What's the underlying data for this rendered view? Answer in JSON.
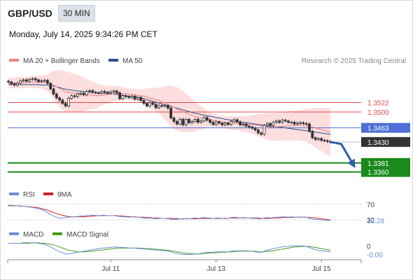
{
  "header": {
    "symbol": "GBP/USD",
    "timeframe": "30 MIN",
    "datetime": "Monday, July 14, 2025 9:34:26 PM CET"
  },
  "colors": {
    "ma20": "#f08080",
    "ma50": "#2e4e8c",
    "band_fill": "#fbd3d3",
    "resistance": "#e04a4a",
    "pivot_line": "#4f6fd6",
    "support": "#1a8a1a",
    "last_box": "#333333",
    "arrow": "#2e5fa8",
    "rsi": "#6b8fd8",
    "rsi_ma": "#cc2222",
    "macd": "#6b8fd8",
    "macd_signal": "#4a9a1a",
    "candle_up": "#ffffff",
    "candle_down": "#333333"
  },
  "main_legend": {
    "ma20_label": "MA 20 + Bollinger Bands",
    "ma50_label": "MA 50",
    "credit": "Research © 2025 Trading Central"
  },
  "rsi_legend": {
    "rsi_label": "RSI",
    "ma_label": "9MA"
  },
  "macd_legend": {
    "macd_label": "MACD",
    "signal_label": "MACD Signal"
  },
  "chart_data": {
    "type": "candlestick",
    "price_ylim": [
      1.3348,
      1.3603
    ],
    "x_labels": [
      {
        "label": "Jul 11",
        "index": 34
      },
      {
        "label": "Jul 13",
        "index": 69
      },
      {
        "label": "Jul 15",
        "index": 104
      }
    ],
    "levels": [
      {
        "label": "1.3522",
        "value": 1.3522,
        "kind": "resistance"
      },
      {
        "label": "1.3500",
        "value": 1.35,
        "kind": "resistance"
      },
      {
        "label": "1.3463",
        "value": 1.3463,
        "kind": "pivot"
      },
      {
        "label": "1.3430",
        "value": 1.343,
        "kind": "last"
      },
      {
        "label": "1.3381",
        "value": 1.3381,
        "kind": "support"
      },
      {
        "label": "1.3360",
        "value": 1.336,
        "kind": "support"
      }
    ],
    "forecast_arrow": {
      "from_index": 107,
      "from_value": 1.343,
      "to_index": 115,
      "to_value": 1.3372
    },
    "close": [
      1.357,
      1.3566,
      1.3563,
      1.3567,
      1.3573,
      1.3575,
      1.3572,
      1.3576,
      1.3578,
      1.3575,
      1.3571,
      1.3573,
      1.3574,
      1.3567,
      1.3554,
      1.3542,
      1.3533,
      1.3528,
      1.352,
      1.3514,
      1.3532,
      1.3538,
      1.3536,
      1.3542,
      1.3544,
      1.354,
      1.3548,
      1.355,
      1.3546,
      1.3545,
      1.3544,
      1.3548,
      1.3546,
      1.3544,
      1.3547,
      1.3549,
      1.3545,
      1.3531,
      1.3538,
      1.3536,
      1.3534,
      1.3537,
      1.353,
      1.3534,
      1.3527,
      1.352,
      1.3514,
      1.3522,
      1.3518,
      1.351,
      1.3515,
      1.3514,
      1.3515,
      1.3509,
      1.3486,
      1.3478,
      1.3472,
      1.3483,
      1.347,
      1.3483,
      1.3475,
      1.3478,
      1.3483,
      1.3476,
      1.3479,
      1.3487,
      1.3481,
      1.3476,
      1.3471,
      1.3477,
      1.3474,
      1.347,
      1.3474,
      1.3471,
      1.3478,
      1.3482,
      1.3477,
      1.347,
      1.3472,
      1.3467,
      1.3465,
      1.3462,
      1.3458,
      1.3451,
      1.3448,
      1.3469,
      1.3473,
      1.3469,
      1.3476,
      1.3479,
      1.3476,
      1.3481,
      1.3479,
      1.3476,
      1.3476,
      1.3472,
      1.3474,
      1.3475,
      1.3473,
      1.3472,
      1.3455,
      1.344,
      1.3436,
      1.3438,
      1.3434,
      1.3433,
      1.3431,
      1.343
    ],
    "ma20": [
      1.3568,
      1.3568,
      1.3568,
      1.3568,
      1.3569,
      1.3569,
      1.3569,
      1.357,
      1.357,
      1.357,
      1.357,
      1.357,
      1.3569,
      1.3568,
      1.3566,
      1.3563,
      1.3559,
      1.3555,
      1.3551,
      1.3547,
      1.3546,
      1.3545,
      1.3544,
      1.3543,
      1.3542,
      1.3541,
      1.354,
      1.354,
      1.3539,
      1.3538,
      1.3538,
      1.3539,
      1.354,
      1.3541,
      1.3542,
      1.3543,
      1.3544,
      1.3543,
      1.3543,
      1.3543,
      1.3542,
      1.3541,
      1.354,
      1.3539,
      1.3538,
      1.3537,
      1.3535,
      1.3533,
      1.3531,
      1.3529,
      1.3527,
      1.3524,
      1.3521,
      1.3518,
      1.3514,
      1.3511,
      1.3507,
      1.3504,
      1.3501,
      1.3498,
      1.3495,
      1.3492,
      1.349,
      1.3488,
      1.3486,
      1.3485,
      1.3484,
      1.3483,
      1.3481,
      1.3479,
      1.3478,
      1.3477,
      1.3476,
      1.3475,
      1.3474,
      1.3474,
      1.3474,
      1.3473,
      1.3472,
      1.3472,
      1.3471,
      1.3471,
      1.347,
      1.3469,
      1.3468,
      1.3467,
      1.3466,
      1.3465,
      1.3465,
      1.3465,
      1.3466,
      1.3466,
      1.3467,
      1.3468,
      1.3468,
      1.3469,
      1.3469,
      1.3469,
      1.3469,
      1.3468,
      1.3467,
      1.3465,
      1.3463,
      1.3461,
      1.3459,
      1.3457,
      1.3455,
      1.3453
    ],
    "band_upper": [
      1.358,
      1.358,
      1.3581,
      1.3581,
      1.3582,
      1.3582,
      1.3582,
      1.3583,
      1.3584,
      1.3584,
      1.3585,
      1.3585,
      1.3586,
      1.3587,
      1.3592,
      1.3596,
      1.3598,
      1.3598,
      1.3597,
      1.3595,
      1.3593,
      1.3591,
      1.3589,
      1.3587,
      1.3584,
      1.3581,
      1.3577,
      1.3574,
      1.3571,
      1.3568,
      1.3565,
      1.3563,
      1.3562,
      1.3562,
      1.3561,
      1.3561,
      1.356,
      1.3559,
      1.3558,
      1.3557,
      1.3556,
      1.3555,
      1.3554,
      1.3553,
      1.3553,
      1.3554,
      1.3555,
      1.3556,
      1.3557,
      1.3557,
      1.3557,
      1.3558,
      1.356,
      1.3562,
      1.3562,
      1.3561,
      1.3558,
      1.3554,
      1.3549,
      1.3543,
      1.3537,
      1.3531,
      1.3525,
      1.3519,
      1.3513,
      1.3507,
      1.3503,
      1.35,
      1.3497,
      1.3494,
      1.3492,
      1.3491,
      1.349,
      1.349,
      1.349,
      1.349,
      1.349,
      1.349,
      1.349,
      1.349,
      1.3491,
      1.3493,
      1.3494,
      1.3495,
      1.3495,
      1.3496,
      1.3497,
      1.3497,
      1.3497,
      1.3497,
      1.3498,
      1.3499,
      1.35,
      1.3502,
      1.3503,
      1.3504,
      1.3504,
      1.3505,
      1.3506,
      1.3506,
      1.3507,
      1.3508,
      1.3509,
      1.3509,
      1.3509,
      1.3509,
      1.3509,
      1.3509
    ],
    "band_lower": [
      1.3556,
      1.3556,
      1.3555,
      1.3555,
      1.3556,
      1.3556,
      1.3556,
      1.3557,
      1.3556,
      1.3556,
      1.3555,
      1.3555,
      1.3552,
      1.3549,
      1.354,
      1.353,
      1.352,
      1.3512,
      1.3505,
      1.3499,
      1.3499,
      1.3499,
      1.3499,
      1.3499,
      1.35,
      1.3501,
      1.3503,
      1.3506,
      1.3507,
      1.3508,
      1.3511,
      1.3515,
      1.3518,
      1.352,
      1.3523,
      1.3525,
      1.3528,
      1.3527,
      1.3528,
      1.3529,
      1.3528,
      1.3527,
      1.3526,
      1.3525,
      1.3523,
      1.352,
      1.3515,
      1.351,
      1.3505,
      1.3501,
      1.3497,
      1.349,
      1.3482,
      1.3474,
      1.3466,
      1.3461,
      1.3456,
      1.3454,
      1.3453,
      1.3453,
      1.3453,
      1.3453,
      1.3455,
      1.3457,
      1.3459,
      1.3463,
      1.3465,
      1.3466,
      1.3465,
      1.3464,
      1.3464,
      1.3463,
      1.3462,
      1.346,
      1.3458,
      1.3458,
      1.3458,
      1.3456,
      1.3454,
      1.3454,
      1.3451,
      1.3449,
      1.3446,
      1.3443,
      1.3441,
      1.3438,
      1.3435,
      1.3433,
      1.3433,
      1.3433,
      1.3434,
      1.3433,
      1.3434,
      1.3434,
      1.3433,
      1.3434,
      1.3434,
      1.3433,
      1.3432,
      1.343,
      1.3427,
      1.3422,
      1.3417,
      1.3413,
      1.3409,
      1.3405,
      1.3401,
      1.3397
    ],
    "ma50": [
      1.3564,
      1.3564,
      1.3564,
      1.3564,
      1.3564,
      1.3564,
      1.3564,
      1.3564,
      1.3564,
      1.3564,
      1.3564,
      1.3563,
      1.3563,
      1.3563,
      1.3562,
      1.3561,
      1.3559,
      1.3557,
      1.3555,
      1.3553,
      1.3552,
      1.3551,
      1.355,
      1.3549,
      1.3549,
      1.3548,
      1.3547,
      1.3546,
      1.3546,
      1.3545,
      1.3545,
      1.3544,
      1.3544,
      1.3543,
      1.3543,
      1.3542,
      1.3541,
      1.354,
      1.3539,
      1.3538,
      1.3537,
      1.3536,
      1.3535,
      1.3534,
      1.3533,
      1.3531,
      1.3529,
      1.3527,
      1.3525,
      1.3523,
      1.3521,
      1.3519,
      1.3517,
      1.3515,
      1.3513,
      1.3511,
      1.3509,
      1.3507,
      1.3505,
      1.3503,
      1.3501,
      1.3499,
      1.3497,
      1.3496,
      1.3494,
      1.3493,
      1.3491,
      1.349,
      1.3489,
      1.3487,
      1.3486,
      1.3485,
      1.3483,
      1.3482,
      1.3481,
      1.348,
      1.3478,
      1.3477,
      1.3476,
      1.3475,
      1.3474,
      1.3473,
      1.3472,
      1.3471,
      1.347,
      1.3469,
      1.3468,
      1.3467,
      1.3466,
      1.3465,
      1.3465,
      1.3464,
      1.3463,
      1.3462,
      1.3461,
      1.346,
      1.3459,
      1.3458,
      1.3457,
      1.3456,
      1.3455,
      1.3454,
      1.3453,
      1.3452,
      1.3451,
      1.345,
      1.3449,
      1.3448
    ],
    "rsi": {
      "ylim": [
        25,
        75
      ],
      "tick_labels": [
        {
          "label": "70",
          "value": 70
        },
        {
          "label": "30",
          "value": 30
        }
      ],
      "last_label": "29.28",
      "values": [
        68,
        67,
        67,
        66,
        66,
        65,
        64,
        63,
        62,
        60,
        58,
        56,
        53,
        49,
        44,
        40,
        37,
        35,
        35,
        36,
        37,
        38,
        38,
        39,
        40,
        40,
        41,
        42,
        42,
        41,
        41,
        42,
        42,
        41,
        41,
        41,
        40,
        39,
        38,
        38,
        37,
        38,
        37,
        37,
        36,
        35,
        34,
        35,
        34,
        33,
        34,
        34,
        34,
        33,
        32,
        31,
        31,
        33,
        32,
        34,
        33,
        34,
        35,
        34,
        35,
        36,
        35,
        35,
        34,
        35,
        35,
        34,
        35,
        34,
        36,
        37,
        36,
        35,
        36,
        35,
        35,
        34,
        34,
        33,
        33,
        35,
        36,
        35,
        36,
        37,
        37,
        38,
        38,
        37,
        38,
        37,
        37,
        38,
        37,
        37,
        34,
        32,
        31,
        31,
        30,
        30,
        29,
        29
      ]
    },
    "rsi_ma": [
      66,
      66,
      66,
      66,
      65,
      65,
      64,
      64,
      63,
      62,
      61,
      59,
      57,
      55,
      52,
      49,
      46,
      44,
      42,
      40,
      39,
      38,
      38,
      38,
      38,
      38,
      39,
      39,
      40,
      40,
      41,
      41,
      41,
      41,
      41,
      41,
      41,
      40,
      40,
      39,
      39,
      38,
      38,
      37,
      37,
      37,
      36,
      36,
      35,
      35,
      35,
      34,
      34,
      34,
      34,
      33,
      33,
      33,
      33,
      33,
      33,
      33,
      33,
      33,
      34,
      34,
      34,
      34,
      34,
      34,
      34,
      34,
      34,
      34,
      35,
      35,
      35,
      35,
      35,
      35,
      35,
      35,
      35,
      35,
      34,
      34,
      34,
      34,
      35,
      35,
      35,
      36,
      36,
      36,
      36,
      37,
      37,
      37,
      37,
      37,
      36,
      36,
      35,
      34,
      33,
      32,
      31,
      30
    ],
    "macd": {
      "ylim": [
        -0.0022,
        0.0011
      ],
      "tick_labels": [
        {
          "label": "0",
          "value": 0
        }
      ],
      "last_label": "-0.00",
      "values": [
        0.0005,
        0.0005,
        0.0005,
        0.0005,
        0.0005,
        0.0006,
        0.0006,
        0.0006,
        0.0006,
        0.0006,
        0.0005,
        0.0004,
        0.0003,
        0.0001,
        -0.0002,
        -0.0005,
        -0.0008,
        -0.0011,
        -0.0013,
        -0.0015,
        -0.0015,
        -0.0014,
        -0.0013,
        -0.0012,
        -0.0011,
        -0.001,
        -0.0009,
        -0.0008,
        -0.0007,
        -0.0006,
        -0.0005,
        -0.0004,
        -0.0004,
        -0.0003,
        -0.0003,
        -0.0002,
        -0.0002,
        -0.0003,
        -0.0003,
        -0.0003,
        -0.0004,
        -0.0004,
        -0.0004,
        -0.0005,
        -0.0005,
        -0.0006,
        -0.0006,
        -0.0007,
        -0.0007,
        -0.0008,
        -0.0008,
        -0.0009,
        -0.0009,
        -0.001,
        -0.0011,
        -0.0013,
        -0.0014,
        -0.0015,
        -0.0016,
        -0.0016,
        -0.0016,
        -0.0016,
        -0.0015,
        -0.0015,
        -0.0014,
        -0.0013,
        -0.0012,
        -0.0012,
        -0.0012,
        -0.0011,
        -0.0011,
        -0.0011,
        -0.0011,
        -0.0011,
        -0.001,
        -0.0009,
        -0.0009,
        -0.0009,
        -0.0009,
        -0.0009,
        -0.001,
        -0.001,
        -0.0011,
        -0.0012,
        -0.0012,
        -0.001,
        -0.0008,
        -0.0007,
        -0.0005,
        -0.0004,
        -0.0003,
        -0.0002,
        -0.0001,
        -0.0001,
        0.0,
        0.0,
        0.0,
        0.0,
        0.0,
        -0.0001,
        -0.0003,
        -0.0005,
        -0.0007,
        -0.0008,
        -0.0009,
        -0.001,
        -0.001,
        -0.0011
      ]
    },
    "macd_signal": [
      0.0005,
      0.0005,
      0.0005,
      0.0005,
      0.0005,
      0.0005,
      0.0005,
      0.0005,
      0.0006,
      0.0006,
      0.0006,
      0.0005,
      0.0005,
      0.0004,
      0.0003,
      0.0002,
      0.0,
      -0.0002,
      -0.0004,
      -0.0006,
      -0.0008,
      -0.0009,
      -0.001,
      -0.0011,
      -0.0011,
      -0.0011,
      -0.0011,
      -0.001,
      -0.001,
      -0.0009,
      -0.0008,
      -0.0008,
      -0.0007,
      -0.0006,
      -0.0006,
      -0.0005,
      -0.0004,
      -0.0004,
      -0.0004,
      -0.0004,
      -0.0004,
      -0.0004,
      -0.0004,
      -0.0004,
      -0.0004,
      -0.0005,
      -0.0005,
      -0.0005,
      -0.0006,
      -0.0006,
      -0.0007,
      -0.0007,
      -0.0008,
      -0.0008,
      -0.0009,
      -0.001,
      -0.0011,
      -0.0012,
      -0.0013,
      -0.0014,
      -0.0014,
      -0.0015,
      -0.0015,
      -0.0015,
      -0.0015,
      -0.0014,
      -0.0014,
      -0.0013,
      -0.0013,
      -0.0013,
      -0.0012,
      -0.0012,
      -0.0012,
      -0.0011,
      -0.0011,
      -0.0011,
      -0.001,
      -0.001,
      -0.001,
      -0.001,
      -0.001,
      -0.001,
      -0.001,
      -0.0011,
      -0.0011,
      -0.0011,
      -0.001,
      -0.001,
      -0.0009,
      -0.0008,
      -0.0007,
      -0.0006,
      -0.0005,
      -0.0004,
      -0.0003,
      -0.0002,
      -0.0002,
      -0.0001,
      -0.0001,
      -0.0001,
      -0.0001,
      -0.0002,
      -0.0003,
      -0.0004,
      -0.0005,
      -0.0006,
      -0.0007,
      -0.0008
    ]
  }
}
